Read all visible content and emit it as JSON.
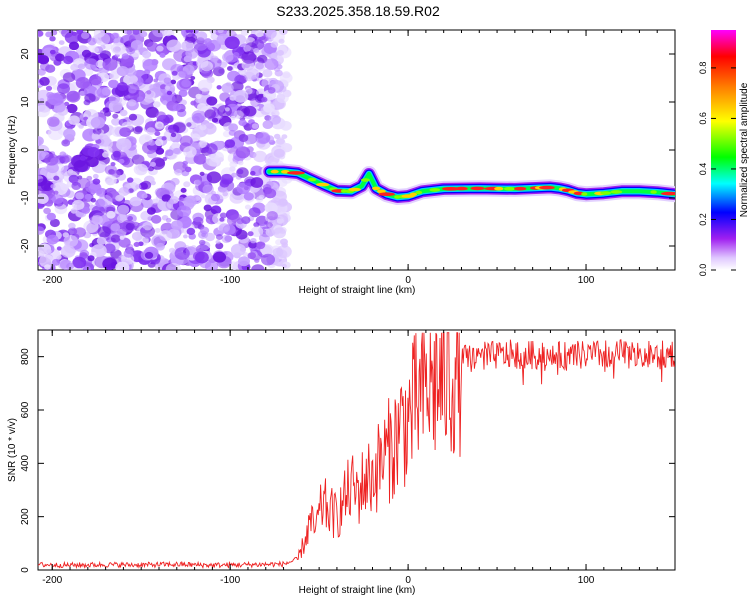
{
  "figure_title": "S233.2025.358.18.59.R02",
  "chart_data": [
    {
      "type": "heatmap",
      "title": "S233.2025.358.18.59.R02",
      "xlabel": "Height of straight line (km)",
      "ylabel": "Frequency (Hz)",
      "xlim": [
        -208,
        150
      ],
      "ylim": [
        -25,
        25
      ],
      "xticks": [
        -200,
        -100,
        0,
        100
      ],
      "yticks": [
        -20,
        -10,
        0,
        10,
        20
      ],
      "xtick_labels": [
        "-200",
        "-100",
        "0",
        "100"
      ],
      "ytick_labels": [
        "-20",
        "-10",
        "0",
        "10",
        "20"
      ],
      "noise_region_x": [
        -208,
        -68
      ],
      "ridge": {
        "x": [
          -78,
          -70,
          -62,
          -55,
          -48,
          -40,
          -32,
          -26,
          -22,
          -18,
          -12,
          -6,
          0,
          8,
          20,
          40,
          60,
          80,
          85,
          90,
          95,
          100,
          110,
          120,
          130,
          140,
          150
        ],
        "y": [
          -4.5,
          -4.5,
          -4.8,
          -6.0,
          -7.2,
          -8.5,
          -8.6,
          -7.5,
          -5.0,
          -8.0,
          -9.2,
          -9.8,
          -9.6,
          -8.6,
          -8.1,
          -8.0,
          -8.1,
          -7.8,
          -8.0,
          -8.4,
          -9.0,
          -9.2,
          -9.0,
          -8.6,
          -8.6,
          -8.8,
          -9.2
        ]
      },
      "colorbar": {
        "label": "Normalized spectral amplitude",
        "range": [
          0.0,
          0.95
        ],
        "ticks": [
          0.0,
          0.2,
          0.4,
          0.6,
          0.8
        ],
        "tick_labels": [
          "0.0",
          "0.2",
          "0.4",
          "0.6",
          "0.8"
        ],
        "colors": [
          "#ffffff",
          "#a020f0",
          "#0000ff",
          "#00ffff",
          "#00ff00",
          "#ffff00",
          "#ff8000",
          "#ff0000",
          "#ff00ff"
        ]
      }
    },
    {
      "type": "line",
      "title": "",
      "xlabel": "Height of straight line (km)",
      "ylabel": "SNR (10 * v/v)",
      "xlim": [
        -208,
        150
      ],
      "ylim": [
        0,
        900
      ],
      "xticks": [
        -200,
        -100,
        0,
        100
      ],
      "yticks": [
        0,
        200,
        400,
        600,
        800
      ],
      "xtick_labels": [
        "-200",
        "-100",
        "0",
        "100"
      ],
      "ytick_labels": [
        "0",
        "200",
        "400",
        "600",
        "800"
      ],
      "color": "#ee2222",
      "series": [
        {
          "name": "SNR",
          "x": [
            -208,
            -190,
            -170,
            -150,
            -130,
            -110,
            -90,
            -70,
            -62,
            -58,
            -55,
            -52,
            -48,
            -44,
            -40,
            -36,
            -32,
            -28,
            -24,
            -20,
            -16,
            -12,
            -8,
            -4,
            0,
            4,
            8,
            12,
            16,
            20,
            24,
            28,
            30,
            40,
            60,
            80,
            100,
            120,
            140,
            150
          ],
          "y": [
            20,
            18,
            20,
            19,
            21,
            18,
            20,
            22,
            40,
            110,
            180,
            150,
            250,
            220,
            200,
            260,
            310,
            290,
            340,
            350,
            400,
            440,
            470,
            540,
            560,
            620,
            660,
            690,
            700,
            720,
            730,
            740,
            790,
            800,
            810,
            800,
            805,
            810,
            805,
            815
          ]
        }
      ]
    }
  ]
}
